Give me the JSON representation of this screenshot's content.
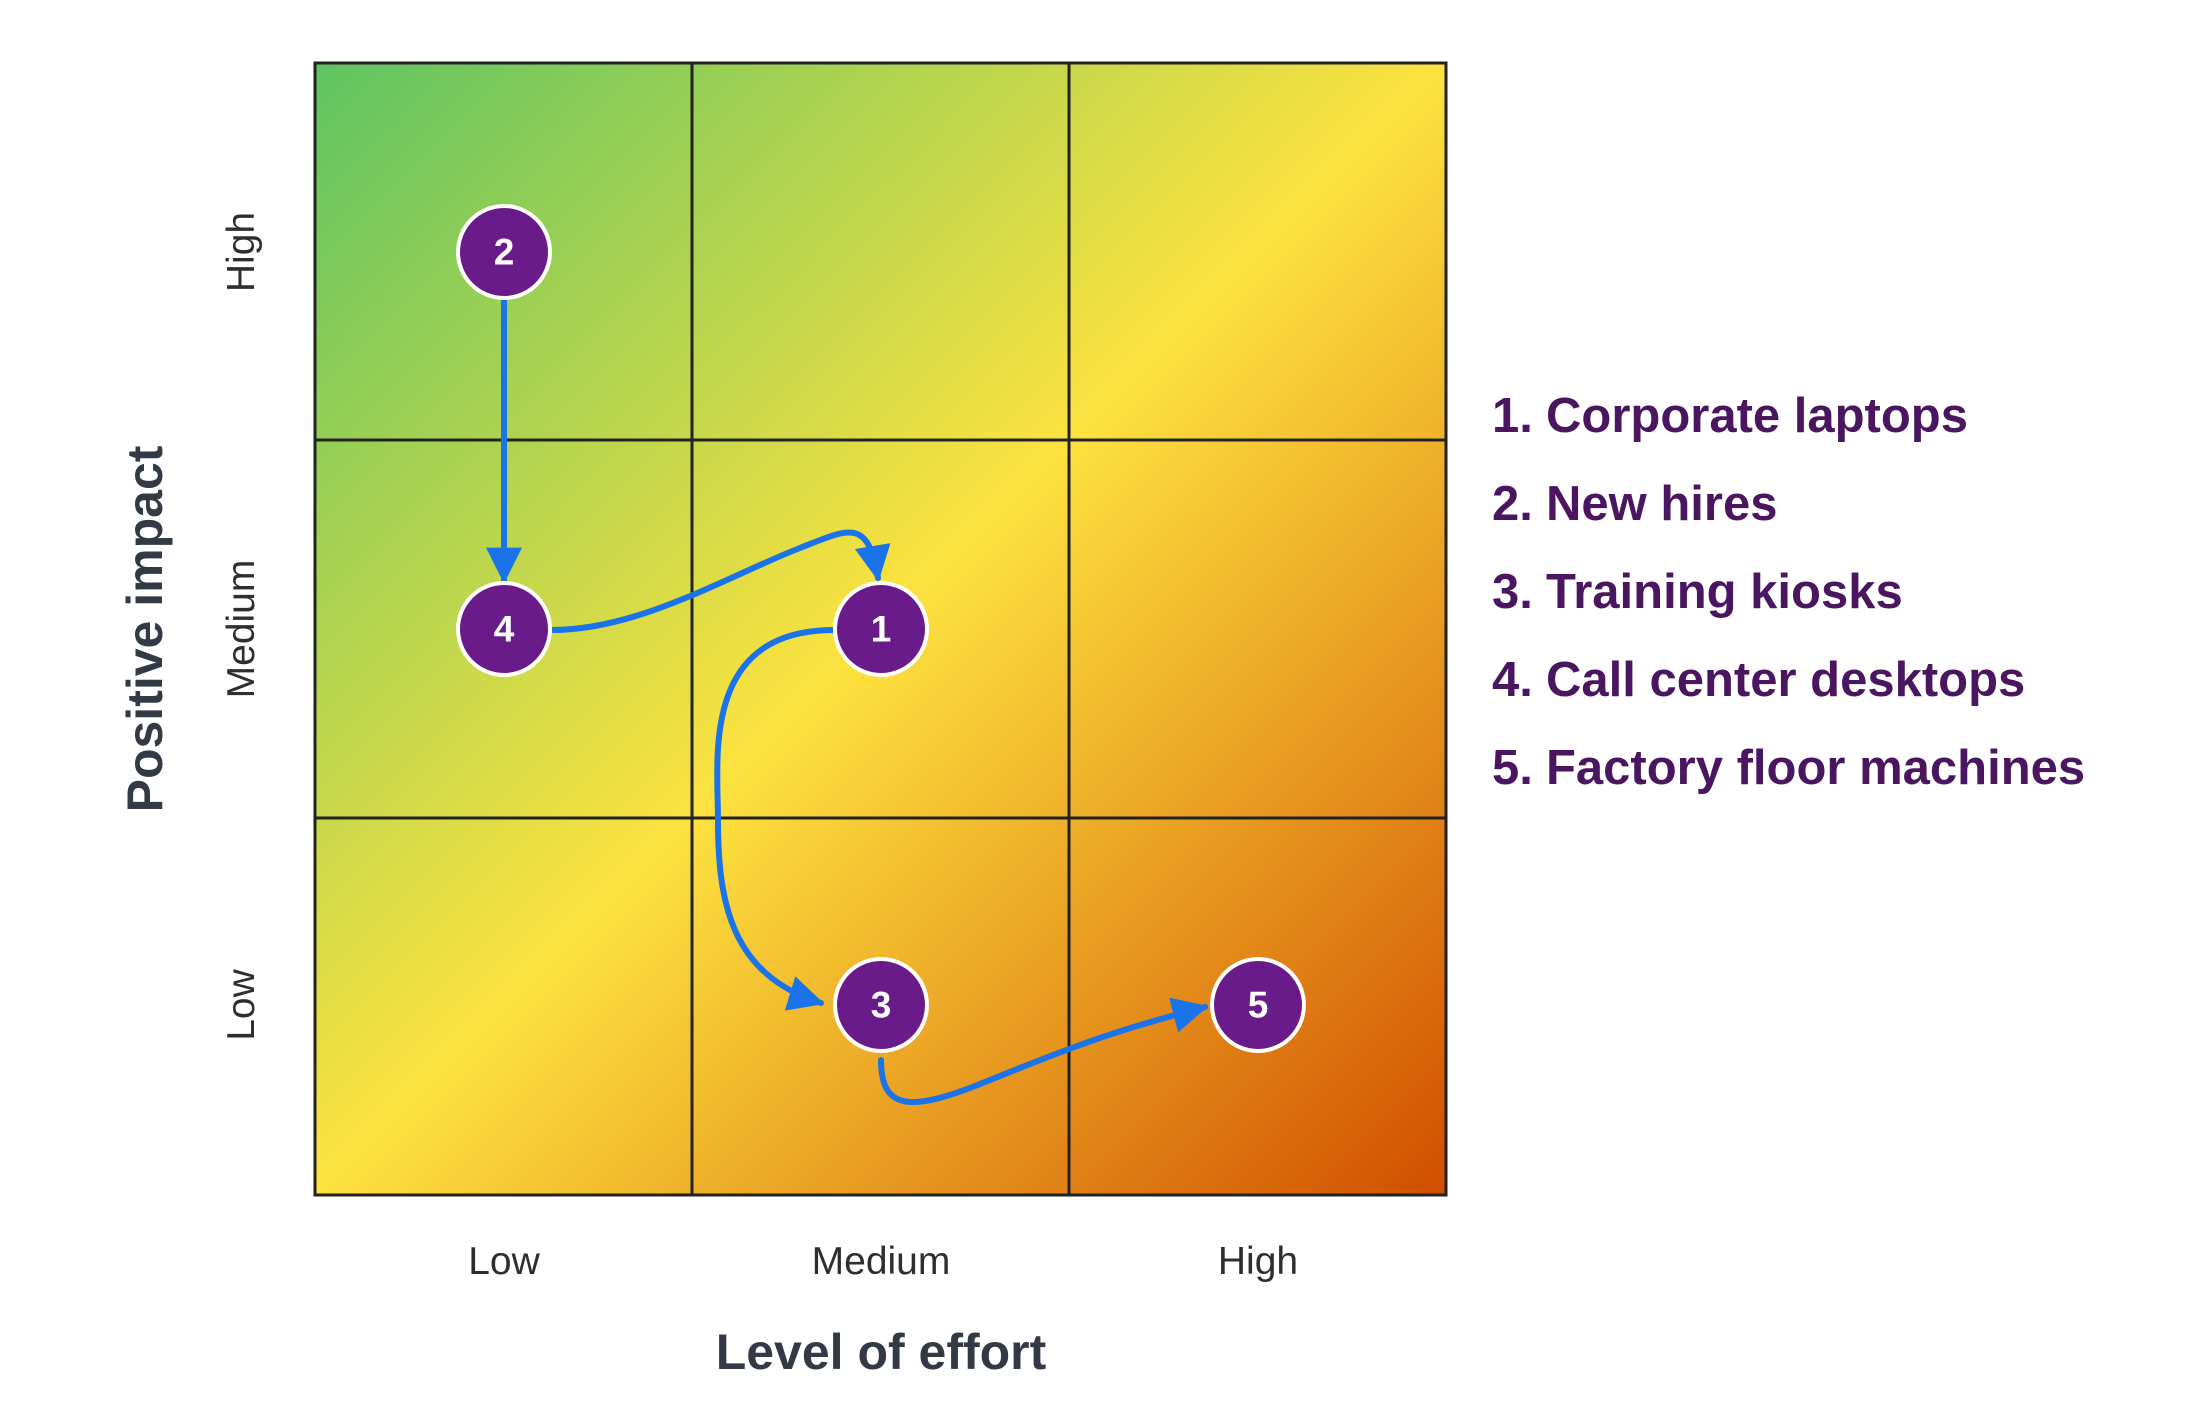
{
  "x_axis": {
    "title": "Level of effort",
    "ticks": [
      "Low",
      "Medium",
      "High"
    ]
  },
  "y_axis": {
    "title": "Positive impact",
    "ticks": [
      "High",
      "Medium",
      "Low"
    ]
  },
  "grid": {
    "rows": 3,
    "columns": 3,
    "line_color": "#222222"
  },
  "gradient": {
    "from": "#5ec462",
    "middle": "#fde23f",
    "to": "#d14e00"
  },
  "colors": {
    "marker_fill": "#6a1b8a",
    "arrow": "#1a73e8",
    "legend_text": "#4a1660",
    "axis_title": "#333a45"
  },
  "markers": [
    {
      "id": "2",
      "effort": "Low",
      "impact": "High"
    },
    {
      "id": "4",
      "effort": "Low",
      "impact": "Medium"
    },
    {
      "id": "1",
      "effort": "Medium",
      "impact": "Medium"
    },
    {
      "id": "3",
      "effort": "Medium",
      "impact": "Low"
    },
    {
      "id": "5",
      "effort": "High",
      "impact": "Low"
    }
  ],
  "flow": [
    "2",
    "4",
    "1",
    "3",
    "5"
  ],
  "legend": [
    {
      "num": "1.",
      "label": "Corporate laptops"
    },
    {
      "num": "2.",
      "label": "New hires"
    },
    {
      "num": "3.",
      "label": "Training kiosks"
    },
    {
      "num": "4.",
      "label": "Call center desktops"
    },
    {
      "num": "5.",
      "label": "Factory floor machines"
    }
  ]
}
